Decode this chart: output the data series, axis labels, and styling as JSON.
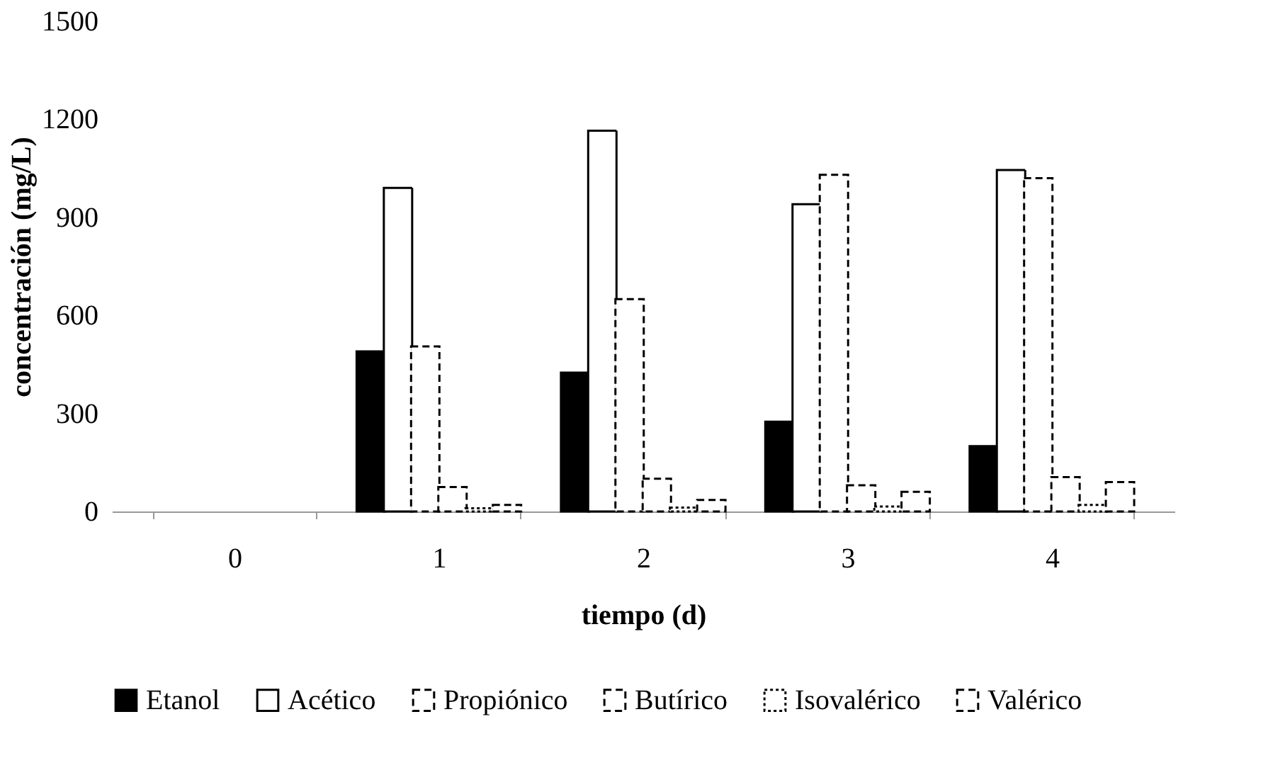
{
  "chart_data": {
    "type": "bar",
    "xlabel": "tiempo (d)",
    "ylabel": "concentración  (mg/L)",
    "categories": [
      "0",
      "1",
      "2",
      "3",
      "4"
    ],
    "series": [
      {
        "name": "Etanol",
        "color": "#000000",
        "line_style": "solid",
        "values": [
          0,
          490,
          425,
          275,
          200
        ]
      },
      {
        "name": "Acético",
        "color": "#ffffff",
        "line_style": "solid",
        "values": [
          0,
          990,
          1165,
          940,
          1045
        ]
      },
      {
        "name": "Propiónico",
        "color": "#ffffff",
        "line_style": "dashed",
        "values": [
          0,
          505,
          650,
          1030,
          1020
        ]
      },
      {
        "name": "Butírico",
        "color": "#ffffff",
        "line_style": "dashed",
        "values": [
          0,
          75,
          100,
          80,
          105
        ]
      },
      {
        "name": "Isovalérico",
        "color": "#ffffff",
        "line_style": "dotted",
        "values": [
          0,
          10,
          12,
          15,
          20
        ]
      },
      {
        "name": "Valérico",
        "color": "#ffffff",
        "line_style": "dashed",
        "values": [
          0,
          20,
          35,
          60,
          90
        ]
      }
    ],
    "ylim": [
      0,
      1500
    ],
    "yticks": [
      0,
      300,
      600,
      900,
      1200,
      1500
    ],
    "grid": false,
    "legend": "bottom"
  }
}
